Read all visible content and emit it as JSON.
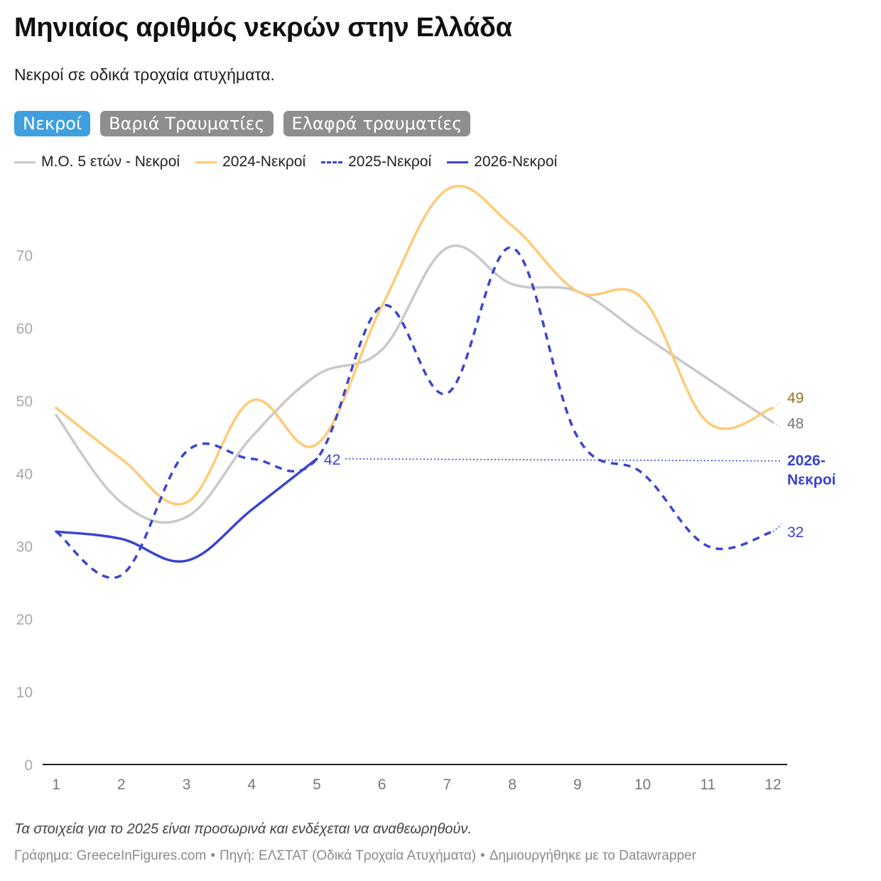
{
  "title": "Μηνιαίος αριθμός νεκρών στην Ελλάδα",
  "subtitle": "Νεκροί σε οδικά τροχαία ατυχήματα.",
  "tabs": [
    {
      "label": "Νεκροί",
      "active": true
    },
    {
      "label": "Βαριά Τραυματίες",
      "active": false
    },
    {
      "label": "Ελαφρά τραυματίες",
      "active": false
    }
  ],
  "note": "Τα στοιχεία για το 2025 είναι προσωρινά και ενδέχεται να αναθεωρηθούν.",
  "footer": {
    "graph": "Γράφημα: GreeceInFigures.com",
    "source": "Πηγή: ΕΛΣΤΑΤ (Οδικά Τροχαία Ατυχήματα)",
    "made_with": "Δημιουργήθηκε με το Datawrapper",
    "separator": "•"
  },
  "chart_data": {
    "type": "line",
    "title": "Μηνιαίος αριθμός νεκρών στην Ελλάδα",
    "x": [
      1,
      2,
      3,
      4,
      5,
      6,
      7,
      8,
      9,
      10,
      11,
      12
    ],
    "xlabel": "",
    "ylabel": "",
    "ylim": [
      0,
      80
    ],
    "yticks": [
      0,
      10,
      20,
      30,
      40,
      50,
      60,
      70
    ],
    "grid": false,
    "legend_position": "top-left",
    "series": [
      {
        "name": "Μ.Ο. 5 ετών - Νεκροί",
        "color": "#c8c8c8",
        "dashed": false,
        "values": [
          48,
          36,
          34,
          45,
          53.5,
          57,
          71,
          66,
          65,
          59,
          53,
          47
        ],
        "end_label": "48",
        "end_label_color": "#777777"
      },
      {
        "name": "2024-Νεκροί",
        "color": "#fecb77",
        "dashed": false,
        "values": [
          49,
          42,
          36,
          50,
          44,
          63,
          79,
          74,
          65,
          64,
          47,
          49
        ],
        "end_label": "49",
        "end_label_color": "#9a7220"
      },
      {
        "name": "2025-Νεκροί",
        "color": "#3a44d0",
        "dashed": true,
        "values": [
          32,
          26,
          43,
          42,
          42,
          63,
          51,
          71,
          45,
          40,
          30,
          32
        ],
        "end_label": "32",
        "end_label_color": "#3a44d0"
      },
      {
        "name": "2026-Νεκροί",
        "color": "#3a44d0",
        "dashed": false,
        "values": [
          32,
          31,
          28,
          35,
          42,
          null,
          null,
          null,
          null,
          null,
          null,
          null
        ],
        "last_value_label": "42",
        "reference_line": 42,
        "end_label": "2026-\nΝεκροί",
        "end_label_color": "#3a44d0"
      }
    ]
  }
}
